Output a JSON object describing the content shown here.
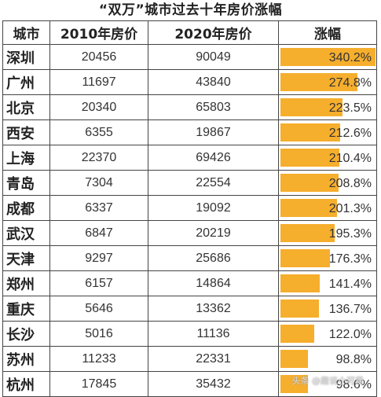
{
  "title": "“双万”城市过去十年房价涨幅",
  "headers": [
    "城市",
    "2010年房价",
    "2020年房价",
    "涨幅"
  ],
  "accent_color": "#f6ae2d",
  "rows": [
    {
      "city": "深圳",
      "price_2010": "20456",
      "price_2020": "90049",
      "increase": "340.2%",
      "pct": 340.2
    },
    {
      "city": "广州",
      "price_2010": "11697",
      "price_2020": "43840",
      "increase": "274.8%",
      "pct": 274.8
    },
    {
      "city": "北京",
      "price_2010": "20340",
      "price_2020": "65803",
      "increase": "223.5%",
      "pct": 223.5
    },
    {
      "city": "西安",
      "price_2010": "6355",
      "price_2020": "19867",
      "increase": "212.6%",
      "pct": 212.6
    },
    {
      "city": "上海",
      "price_2010": "22370",
      "price_2020": "69426",
      "increase": "210.4%",
      "pct": 210.4
    },
    {
      "city": "青岛",
      "price_2010": "7304",
      "price_2020": "22554",
      "increase": "208.8%",
      "pct": 208.8
    },
    {
      "city": "成都",
      "price_2010": "6337",
      "price_2020": "19092",
      "increase": "201.3%",
      "pct": 201.3
    },
    {
      "city": "武汉",
      "price_2010": "6847",
      "price_2020": "20219",
      "increase": "195.3%",
      "pct": 195.3
    },
    {
      "city": "天津",
      "price_2010": "9297",
      "price_2020": "25686",
      "increase": "176.3%",
      "pct": 176.3
    },
    {
      "city": "郑州",
      "price_2010": "6157",
      "price_2020": "14864",
      "increase": "141.4%",
      "pct": 141.4
    },
    {
      "city": "重庆",
      "price_2010": "5646",
      "price_2020": "13362",
      "increase": "136.7%",
      "pct": 136.7
    },
    {
      "city": "长沙",
      "price_2010": "5016",
      "price_2020": "11136",
      "increase": "122.0%",
      "pct": 122.0
    },
    {
      "city": "苏州",
      "price_2010": "11233",
      "price_2020": "22331",
      "increase": "98.8%",
      "pct": 98.8
    },
    {
      "city": "杭州",
      "price_2010": "17845",
      "price_2020": "35432",
      "increase": "98.6%",
      "pct": 98.6
    }
  ],
  "watermark": "头条 @趣说小可爱"
}
